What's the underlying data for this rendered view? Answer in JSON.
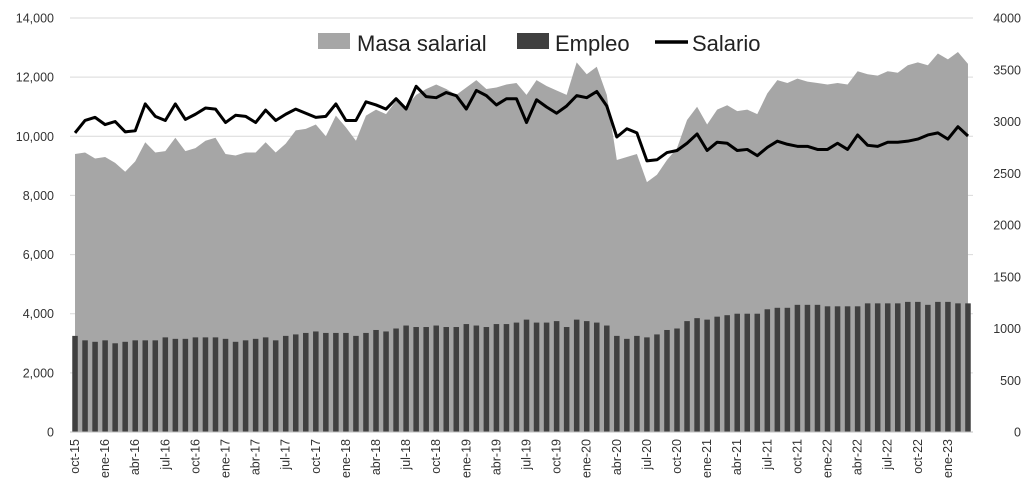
{
  "chart_data": {
    "type": "bar+area+line",
    "x_tick_labels": [
      "oct-15",
      "ene-16",
      "abr-16",
      "jul-16",
      "oct-16",
      "ene-17",
      "abr-17",
      "jul-17",
      "oct-17",
      "ene-18",
      "abr-18",
      "jul-18",
      "oct-18",
      "ene-19",
      "abr-19",
      "jul-19",
      "oct-19",
      "ene-20",
      "abr-20",
      "jul-20",
      "oct-20",
      "ene-21",
      "abr-21",
      "jul-21",
      "oct-21",
      "ene-22",
      "abr-22",
      "jul-22",
      "oct-22",
      "ene-23"
    ],
    "y_left": {
      "ticks": [
        "0",
        "2,000",
        "4,000",
        "6,000",
        "8,000",
        "10,000",
        "12,000",
        "14,000"
      ],
      "lim": [
        0,
        14000
      ]
    },
    "y_right": {
      "ticks": [
        "0",
        "500",
        "1000",
        "1500",
        "2000",
        "2500",
        "3000",
        "3500",
        "4000"
      ],
      "lim": [
        0,
        4000
      ]
    },
    "legend": {
      "placement": "top-center",
      "entries": [
        "Masa salarial",
        "Empleo",
        "Salario"
      ]
    },
    "colors": {
      "masa": "#a6a6a6",
      "empleo": "#404040",
      "salario": "#000000"
    },
    "series": [
      {
        "name": "Masa salarial",
        "kind": "area",
        "axis": "left",
        "values": [
          9400,
          9450,
          9250,
          9300,
          9100,
          8800,
          9150,
          9800,
          9450,
          9500,
          9950,
          9500,
          9600,
          9850,
          9950,
          9400,
          9350,
          9450,
          9450,
          9800,
          9450,
          9750,
          10200,
          10250,
          10400,
          10000,
          10700,
          10300,
          9850,
          10700,
          10900,
          10750,
          11200,
          11000,
          11400,
          11600,
          11750,
          11600,
          11400,
          11650,
          11900,
          11600,
          11650,
          11750,
          11800,
          11400,
          11900,
          11700,
          11550,
          11400,
          12500,
          12100,
          12350,
          11400,
          9200,
          9300,
          9400,
          8450,
          8700,
          9200,
          9600,
          10550,
          11000,
          10400,
          10900,
          11050,
          10850,
          10900,
          10750,
          11450,
          11900,
          11800,
          11950,
          11850,
          11800,
          11750,
          11800,
          11750,
          12200,
          12100,
          12050,
          12200,
          12150,
          12400,
          12500,
          12400,
          12800,
          12600,
          12850,
          12450
        ]
      },
      {
        "name": "Empleo",
        "kind": "bar",
        "axis": "left",
        "values": [
          3250,
          3100,
          3050,
          3100,
          3000,
          3050,
          3100,
          3100,
          3100,
          3200,
          3150,
          3150,
          3200,
          3200,
          3200,
          3150,
          3050,
          3100,
          3150,
          3200,
          3100,
          3250,
          3300,
          3350,
          3400,
          3350,
          3350,
          3350,
          3250,
          3350,
          3450,
          3400,
          3500,
          3600,
          3550,
          3550,
          3600,
          3550,
          3550,
          3650,
          3600,
          3550,
          3650,
          3650,
          3700,
          3800,
          3700,
          3700,
          3750,
          3550,
          3800,
          3750,
          3700,
          3600,
          3250,
          3150,
          3250,
          3200,
          3300,
          3450,
          3500,
          3750,
          3850,
          3800,
          3900,
          3950,
          4000,
          4000,
          4000,
          4150,
          4200,
          4200,
          4300,
          4300,
          4300,
          4250,
          4250,
          4250,
          4250,
          4350,
          4350,
          4350,
          4350,
          4400,
          4400,
          4300,
          4400,
          4400,
          4350,
          4350
        ]
      },
      {
        "name": "Salario",
        "kind": "line",
        "axis": "right",
        "values": [
          2890,
          3010,
          3040,
          2970,
          3000,
          2900,
          2910,
          3170,
          3050,
          3010,
          3170,
          3020,
          3070,
          3130,
          3120,
          2990,
          3060,
          3050,
          2990,
          3110,
          3010,
          3070,
          3120,
          3080,
          3040,
          3050,
          3170,
          3010,
          3010,
          3190,
          3160,
          3120,
          3220,
          3120,
          3340,
          3240,
          3230,
          3280,
          3250,
          3120,
          3300,
          3250,
          3160,
          3220,
          3220,
          2990,
          3210,
          3140,
          3080,
          3150,
          3250,
          3230,
          3290,
          3150,
          2850,
          2930,
          2890,
          2620,
          2630,
          2700,
          2720,
          2790,
          2880,
          2720,
          2800,
          2790,
          2720,
          2730,
          2670,
          2750,
          2810,
          2780,
          2760,
          2760,
          2730,
          2730,
          2790,
          2730,
          2870,
          2770,
          2760,
          2800,
          2800,
          2810,
          2830,
          2870,
          2890,
          2830,
          2950,
          2860
        ]
      }
    ]
  }
}
